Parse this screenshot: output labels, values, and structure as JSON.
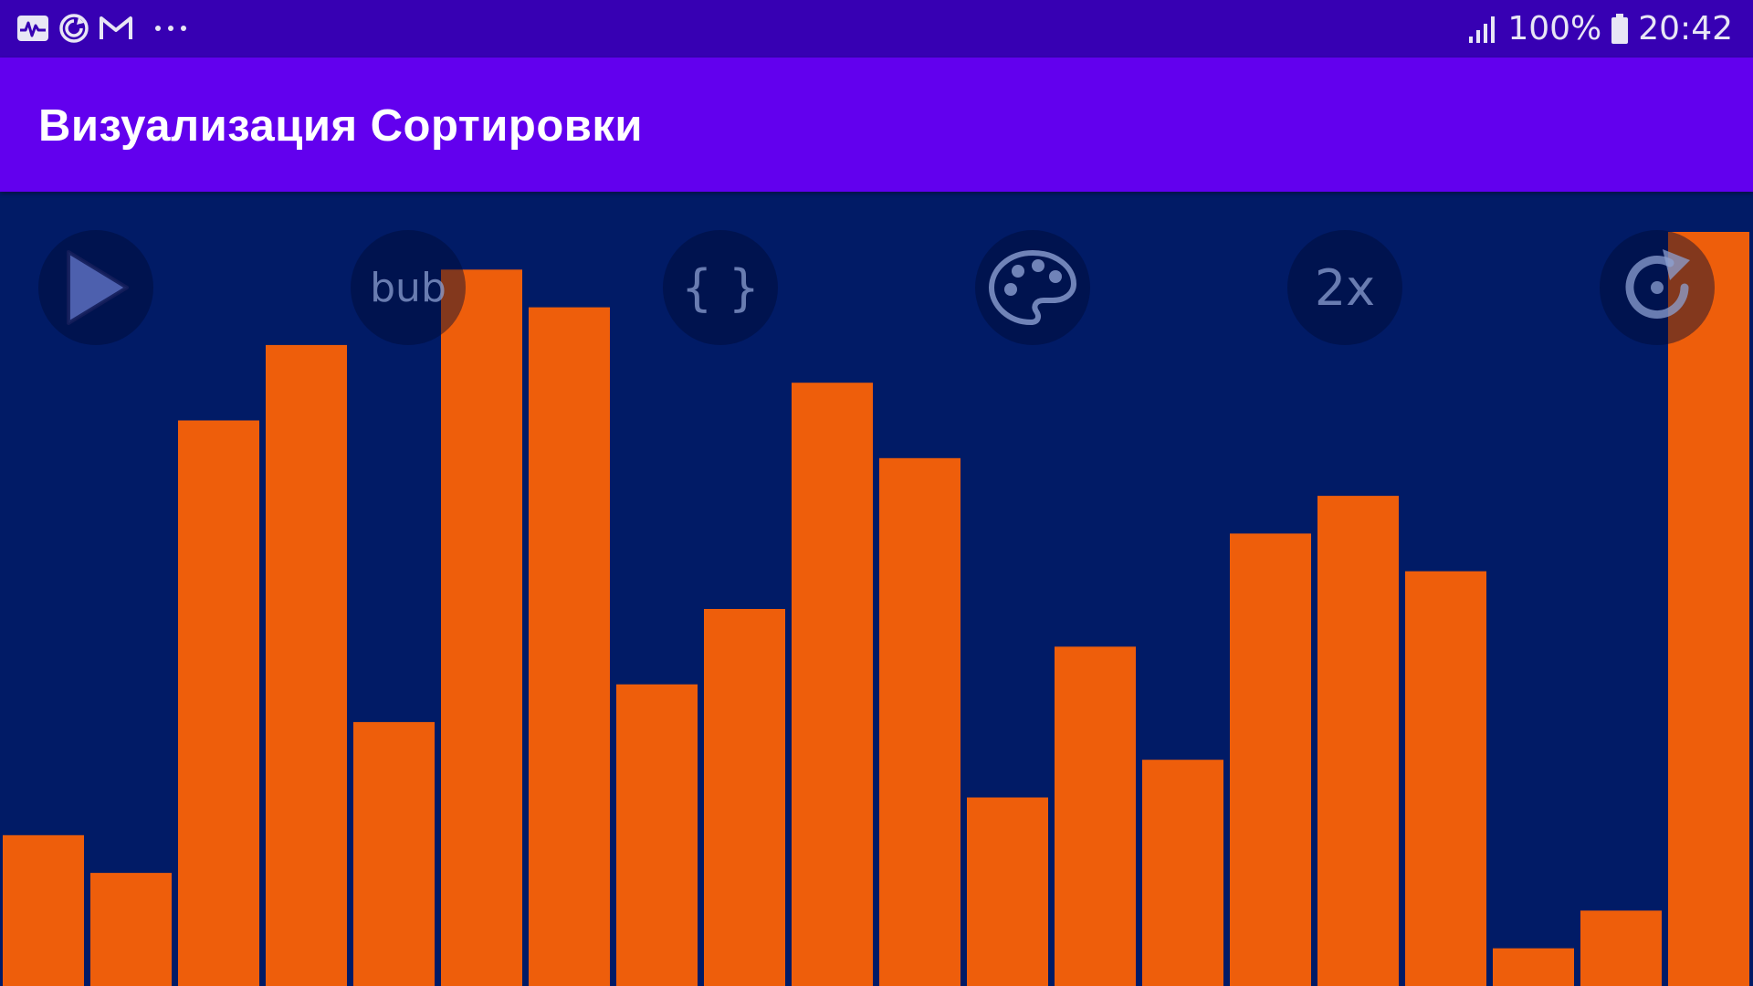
{
  "status_bar": {
    "battery_percent": "100%",
    "time": "20:42",
    "notification_icons": [
      "activity-icon",
      "sync-icon",
      "gmail-icon",
      "more-dots-icon"
    ]
  },
  "app_bar": {
    "title": "Визуализация Сортировки",
    "color": "#6200ee"
  },
  "controls": {
    "algorithm_label": "bub",
    "code_label": "{ }",
    "speed_label": "2x",
    "icons": [
      "play-icon",
      "palette-icon",
      "reset-icon"
    ]
  },
  "colors": {
    "background": "#011b66",
    "bar": "#ee5e0b",
    "status_bar": "#3700b3"
  },
  "chart_data": {
    "type": "bar",
    "values": [
      16,
      12,
      60,
      68,
      28,
      76,
      72,
      32,
      40,
      64,
      56,
      20,
      36,
      24,
      48,
      52,
      44,
      4,
      8,
      80
    ],
    "ylim": [
      0,
      80
    ]
  }
}
